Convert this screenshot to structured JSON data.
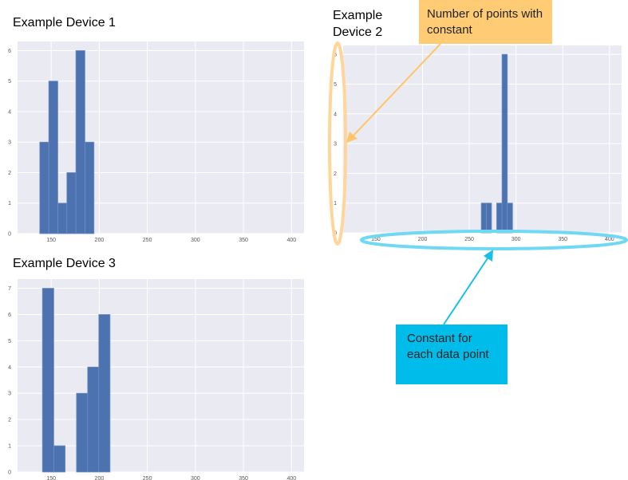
{
  "titles": {
    "device1": "Example Device 1",
    "device2_line1": "Example",
    "device2_line2": "Device 2",
    "device3": "Example Device 3"
  },
  "annotations": {
    "y_axis_note": "Number of points with constant",
    "x_axis_note": "Constant for each data point",
    "y_note_color": "#FFCC75",
    "x_note_color": "#00BCEB"
  },
  "colors": {
    "bar": "#4C72B0",
    "plot_bg": "#EAEAF2",
    "grid": "#FFFFFF"
  },
  "chart_data": [
    {
      "type": "bar",
      "title": "Example Device 1",
      "bin_edges": [
        138.1,
        147.5,
        156.9,
        166.3,
        175.7,
        185.1,
        194.5
      ],
      "values": [
        3,
        5,
        1,
        2,
        6,
        3
      ],
      "xlim": [
        115,
        413
      ],
      "ylim": [
        0,
        6.3
      ],
      "xticks": [
        150,
        200,
        250,
        300,
        350,
        400
      ],
      "yticks": [
        0,
        1,
        2,
        3,
        4,
        5,
        6
      ],
      "grid": true
    },
    {
      "type": "bar",
      "title": "Example Device 2",
      "bin_edges": [
        262.8,
        268.3,
        273.8,
        279.3,
        285.0,
        290.7,
        296.3
      ],
      "values": [
        1,
        1,
        0,
        1,
        6,
        1
      ],
      "xlim": [
        115,
        413
      ],
      "ylim": [
        0,
        6.3
      ],
      "xticks": [
        150,
        200,
        250,
        300,
        350,
        400
      ],
      "yticks": [
        0,
        1,
        2,
        3,
        4,
        5,
        6
      ],
      "grid": true
    },
    {
      "type": "bar",
      "title": "Example Device 3",
      "bin_edges": [
        140.9,
        152.7,
        164.5,
        176.3,
        187.9,
        199.5,
        211.2
      ],
      "values": [
        7,
        1,
        0,
        3,
        4,
        6
      ],
      "xlim": [
        115,
        413
      ],
      "ylim": [
        0,
        7.35
      ],
      "xticks": [
        150,
        200,
        250,
        300,
        350,
        400
      ],
      "yticks": [
        0,
        1,
        2,
        3,
        4,
        5,
        6,
        7
      ],
      "grid": true
    }
  ]
}
